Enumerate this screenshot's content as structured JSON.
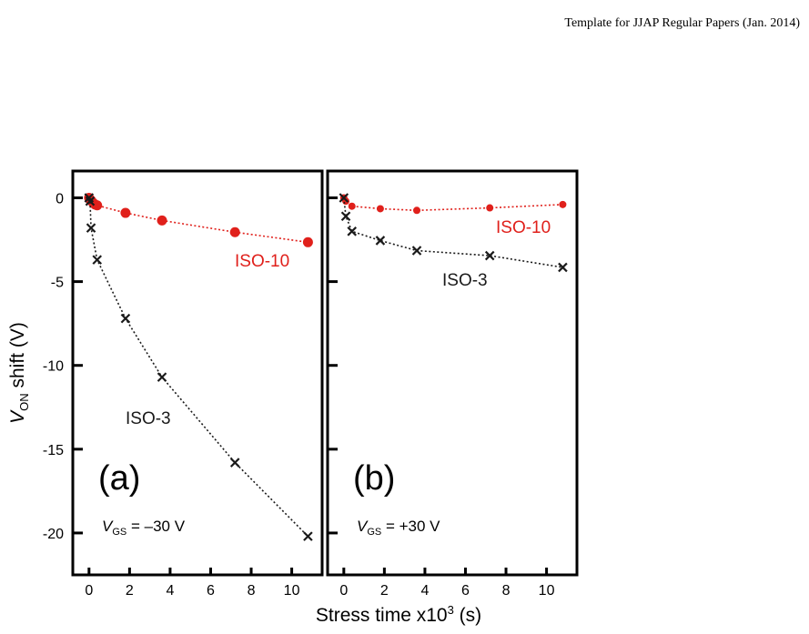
{
  "header": {
    "text": "Template for JJAP Regular Papers (Jan. 2014)"
  },
  "colors": {
    "red": "#e0201b",
    "black": "#1a1a1a"
  },
  "chart_data": [
    {
      "type": "line",
      "panel_label": "(a)",
      "condition": {
        "var": "V",
        "sub": "GS",
        "value": " = –30 V"
      },
      "xlim": [
        -0.8,
        11.5
      ],
      "ylim": [
        -22.5,
        1.6
      ],
      "xticks": [
        0,
        2,
        4,
        6,
        8,
        10
      ],
      "yticks": [
        0,
        -5,
        -10,
        -15,
        -20
      ],
      "ytick_labels": [
        "0",
        "-5",
        "-10",
        "-15",
        "-20"
      ],
      "xlabel": {
        "text": "Stress time x10",
        "sup": "3",
        "after": " (s)"
      },
      "ylabel": {
        "var": "V",
        "sub": "ON",
        "after": " shift (V)"
      },
      "series": [
        {
          "name": "ISO-10",
          "color": "#e0201b",
          "marker": "circle",
          "x": [
            0,
            0.05,
            0.1,
            0.2,
            0.3,
            0.4,
            1.8,
            3.6,
            7.2,
            10.8
          ],
          "y": [
            0,
            -0.1,
            -0.15,
            -0.3,
            -0.4,
            -0.45,
            -0.9,
            -1.35,
            -2.05,
            -2.65
          ]
        },
        {
          "name": "ISO-3",
          "color": "#1a1a1a",
          "marker": "x",
          "x": [
            0,
            0.05,
            0.1,
            0.4,
            1.8,
            3.6,
            7.2,
            10.8
          ],
          "y": [
            0,
            -0.2,
            -1.8,
            -3.7,
            -7.2,
            -10.7,
            -15.8,
            -20.2
          ]
        }
      ]
    },
    {
      "type": "line",
      "panel_label": "(b)",
      "condition": {
        "var": "V",
        "sub": "GS",
        "value": " = +30 V"
      },
      "xlim": [
        -0.8,
        11.5
      ],
      "ylim": [
        -22.5,
        1.6
      ],
      "xticks": [
        0,
        2,
        4,
        6,
        8,
        10
      ],
      "yticks": [
        0,
        -5,
        -10,
        -15,
        -20
      ],
      "series": [
        {
          "name": "ISO-10",
          "color": "#e0201b",
          "marker": "circle",
          "x": [
            0,
            0.1,
            0.4,
            1.8,
            3.6,
            7.2,
            10.8
          ],
          "y": [
            0,
            -0.2,
            -0.5,
            -0.65,
            -0.75,
            -0.6,
            -0.4
          ]
        },
        {
          "name": "ISO-3",
          "color": "#1a1a1a",
          "marker": "x",
          "x": [
            0,
            0.1,
            0.4,
            1.8,
            3.6,
            7.2,
            10.8
          ],
          "y": [
            0,
            -1.1,
            -2.0,
            -2.55,
            -3.15,
            -3.45,
            -4.15
          ]
        }
      ]
    }
  ]
}
